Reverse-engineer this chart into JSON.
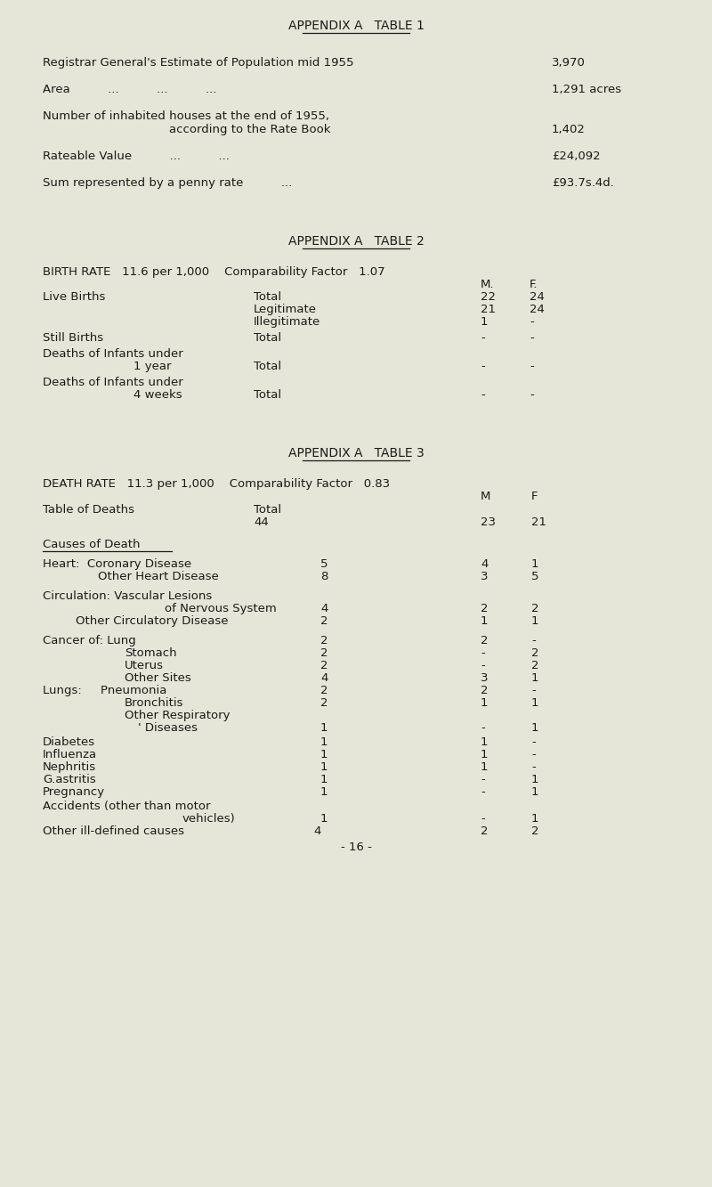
{
  "bg_color": "#e6e6d8",
  "text_color": "#1a1a1a",
  "title1": "APPENDIX A   TABLE 1",
  "title2": "APPENDIX A   TABLE 2",
  "title3": "APPENDIX A   TABLE 3",
  "page_number": "- 16 -"
}
